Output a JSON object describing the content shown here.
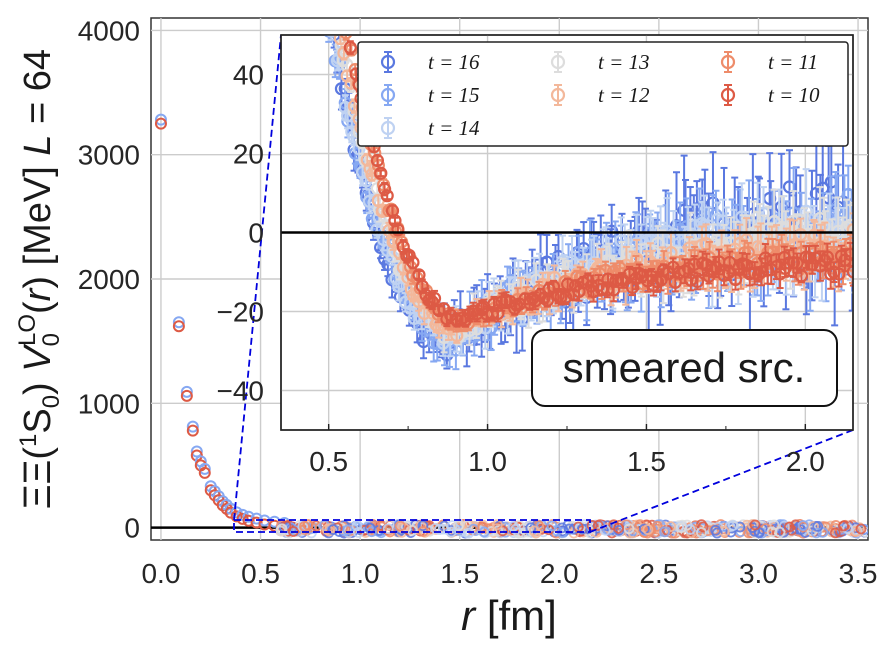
{
  "chart_data": {
    "type": "scatter",
    "main": {
      "xlabel": "r [fm]",
      "ylabel": "ΞΞ(¹S₀) V₀ᴸᴼ(r) [MeV] L = 64",
      "ylabel_parts": {
        "pre": "ΞΞ(",
        "sup1": "1",
        "mid": "S",
        "sub0": "0",
        "post": ") ",
        "V": "V",
        "V_sub": "0",
        "V_sup": "LO",
        "r_open": "(",
        "r": "r",
        "r_close": ")",
        "units": " [MeV] ",
        "L": "L",
        "Leq": " = 64"
      },
      "xlim": [
        -0.05,
        3.55
      ],
      "ylim": [
        -100,
        4100
      ],
      "xticks": [
        "0.0",
        "0.5",
        "1.0",
        "1.5",
        "2.0",
        "2.5",
        "3.0",
        "3.5"
      ],
      "yticks": [
        "0",
        "1000",
        "2000",
        "3000",
        "4000"
      ],
      "grid": true,
      "points_r": [
        0.0,
        0.09,
        0.13,
        0.16,
        0.18,
        0.2,
        0.22,
        0.25,
        0.27,
        0.29,
        0.31,
        0.33,
        0.35,
        0.38,
        0.41,
        0.44,
        0.48,
        0.52,
        0.57,
        0.62
      ],
      "points_v": [
        3250,
        1620,
        1060,
        780,
        580,
        500,
        440,
        300,
        260,
        220,
        180,
        150,
        120,
        90,
        70,
        55,
        40,
        25,
        15,
        5
      ]
    },
    "inset": {
      "xlim": [
        0.35,
        2.15
      ],
      "ylim": [
        -50,
        50
      ],
      "xticks": [
        "0.5",
        "1.0",
        "1.5",
        "2.0"
      ],
      "yticks": [
        "−40",
        "−20",
        "0",
        "20",
        "40"
      ],
      "annotation": "smeared src.",
      "legend_position": "top-right",
      "series": [
        {
          "name": "t = 16",
          "color": "#5a78e0",
          "min_r": 0.88,
          "min_v": -27,
          "tail_v": 2,
          "noise": 8
        },
        {
          "name": "t = 15",
          "color": "#86a8f2",
          "min_r": 0.88,
          "min_v": -27,
          "tail_v": 1,
          "noise": 6
        },
        {
          "name": "t = 14",
          "color": "#bfd2f2",
          "min_r": 0.88,
          "min_v": -26,
          "tail_v": 0,
          "noise": 5
        },
        {
          "name": "t = 13",
          "color": "#dddddd",
          "min_r": 0.9,
          "min_v": -25,
          "tail_v": -2,
          "noise": 4
        },
        {
          "name": "t = 12",
          "color": "#f3b89b",
          "min_r": 0.9,
          "min_v": -24,
          "tail_v": -4,
          "noise": 3
        },
        {
          "name": "t = 11",
          "color": "#ee8c6a",
          "min_r": 0.92,
          "min_v": -23,
          "tail_v": -6,
          "noise": 2
        },
        {
          "name": "t = 10",
          "color": "#dd5a45",
          "min_r": 0.92,
          "min_v": -22,
          "tail_v": -8,
          "noise": 1.5
        }
      ],
      "legend_order": [
        [
          "t = 16",
          "t = 15",
          "t = 14"
        ],
        [
          "t = 13",
          "t = 12"
        ],
        [
          "t = 11",
          "t = 10"
        ]
      ]
    }
  }
}
